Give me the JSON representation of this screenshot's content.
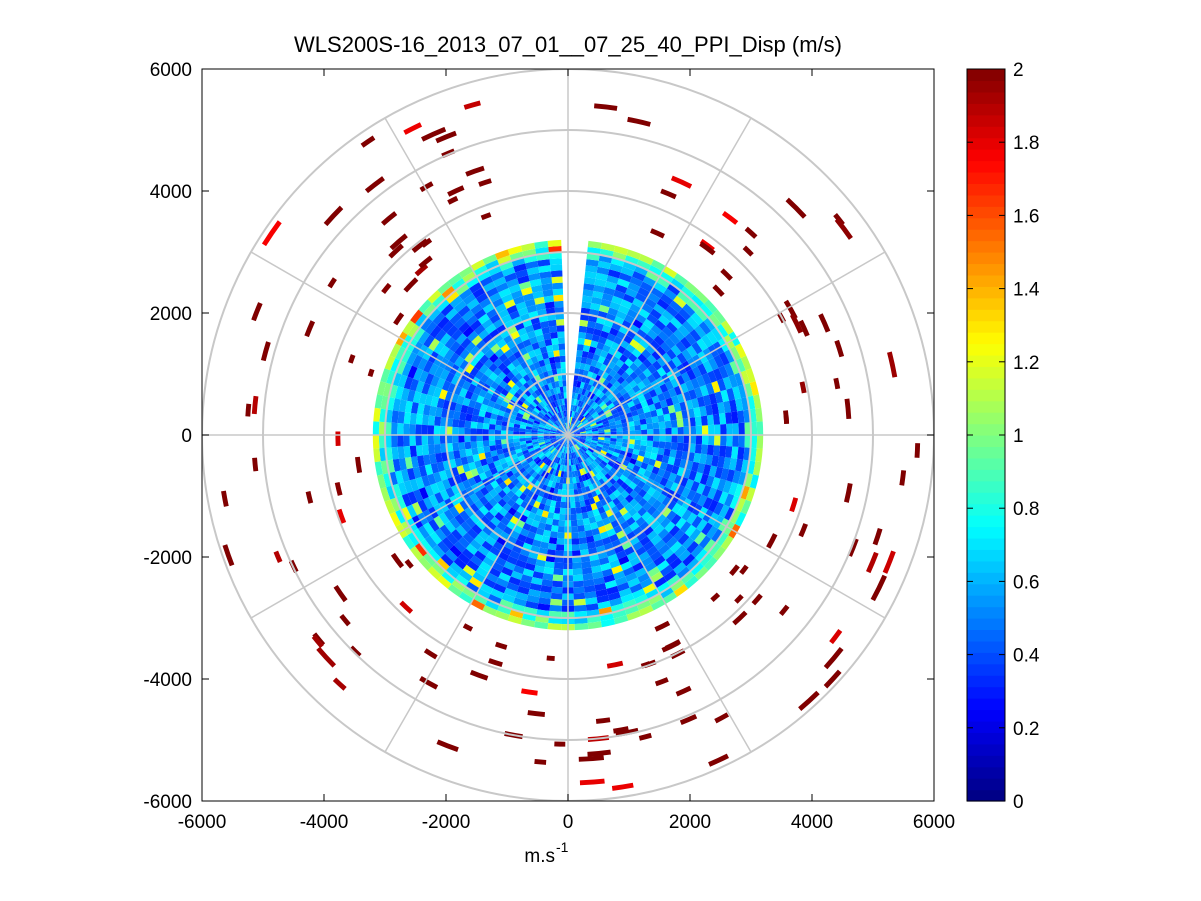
{
  "chart_data": {
    "type": "heatmap",
    "subtype": "polar-ppi",
    "title": "WLS200S-16_2013_07_01__07_25_40_PPI_Disp (m/s)",
    "xlabel_base": "m.s",
    "xlabel_exp": "-1",
    "ylabel": "",
    "xlim": [
      -6000,
      6000
    ],
    "ylim": [
      -6000,
      6000
    ],
    "xticks": [
      -6000,
      -4000,
      -2000,
      0,
      2000,
      4000,
      6000
    ],
    "yticks": [
      6000,
      4000,
      2000,
      0,
      -2000,
      -4000,
      -6000
    ],
    "xtick_labels": [
      "-6000",
      "-4000",
      "-2000",
      "0",
      "2000",
      "4000",
      "6000"
    ],
    "ytick_labels": [
      "6000",
      "4000",
      "2000",
      "0",
      "-2000",
      "-4000",
      "-6000"
    ],
    "range_rings": [
      1000,
      2000,
      3000,
      4000,
      5000,
      6000
    ],
    "spoke_angles_deg": [
      0,
      30,
      60,
      90,
      120,
      150,
      180,
      210,
      240,
      270,
      300,
      330
    ],
    "main_disk_radius": 3200,
    "gap_sector_deg": [
      85,
      92
    ],
    "colorbar": {
      "min": 0,
      "max": 2,
      "ticks": [
        0,
        0.2,
        0.4,
        0.6,
        0.8,
        1,
        1.2,
        1.4,
        1.6,
        1.8,
        2
      ],
      "tick_labels": [
        "0",
        "0.2",
        "0.4",
        "0.6",
        "0.8",
        "1",
        "1.2",
        "1.4",
        "1.6",
        "1.8",
        "2"
      ],
      "colormap": "jet"
    },
    "grid": true,
    "colors": {
      "grid": "#c8c8c8",
      "axes": "#000000",
      "background": "#ffffff"
    }
  }
}
